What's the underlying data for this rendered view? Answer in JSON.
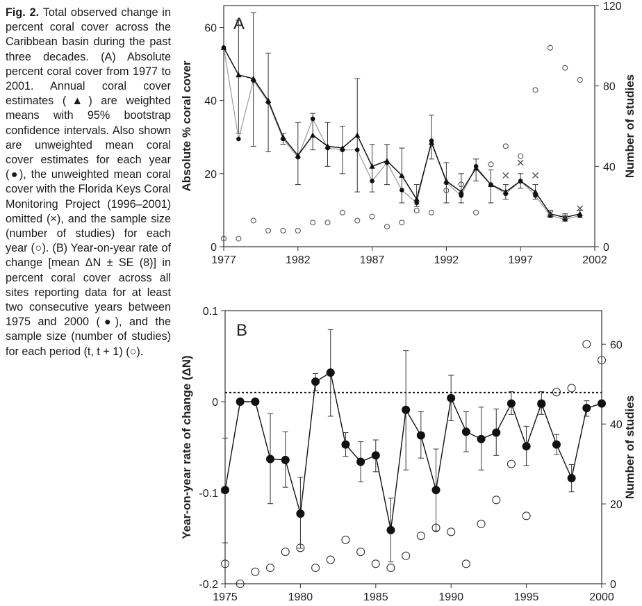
{
  "caption": {
    "label": "Fig. 2.",
    "text": "Total observed change in percent coral cover across the Caribbean basin during the past three decades. (A) Absolute percent coral cover from 1977 to 2001. Annual coral cover estimates (▲) are weighted means with 95% bootstrap confidence intervals. Also shown are unweighted mean coral cover estimates for each year (●), the unweighted mean coral cover with the Florida Keys Coral Monitoring Project (1996–2001) omitted (×), and the sample size (number of studies) for each year (○). (B) Year-on-year rate of change [mean ΔN ± SE (8)] in percent coral cover across all sites reporting data for at least two consecutive years between 1975 and 2000 (●), and the sample size (number of studies) for each period (t, t + 1) (○)."
  },
  "chart_data": [
    {
      "type": "line",
      "panel_label": "A",
      "ylabel": "Absolute % coral cover",
      "y2label": "Number of studies",
      "xlim": [
        1977,
        2002
      ],
      "ylim": [
        0,
        66
      ],
      "y2lim": [
        0,
        120
      ],
      "xticks": [
        1977,
        1982,
        1987,
        1992,
        1997,
        2002
      ],
      "yticks": [
        0,
        20,
        40,
        60
      ],
      "y2ticks": [
        0,
        40,
        80,
        120
      ],
      "x": [
        1977,
        1978,
        1979,
        1980,
        1981,
        1982,
        1983,
        1984,
        1985,
        1986,
        1987,
        1988,
        1989,
        1990,
        1991,
        1992,
        1993,
        1994,
        1995,
        1996,
        1997,
        1998,
        1999,
        2000,
        2001
      ],
      "weighted_mean": [
        54.5,
        47,
        46,
        40,
        30,
        25,
        30.5,
        27.5,
        27,
        30.5,
        22,
        23.5,
        19.5,
        13,
        28.5,
        18,
        15,
        21.5,
        17,
        15,
        18,
        15,
        9,
        8,
        9
      ],
      "ci_low": [
        54.5,
        31,
        27.5,
        26,
        28,
        17,
        26.5,
        22,
        20,
        15,
        15,
        17,
        12,
        11,
        24,
        12,
        12,
        18,
        12,
        13,
        16,
        13,
        8,
        7,
        8
      ],
      "ci_high": [
        54.5,
        62,
        64,
        53,
        31,
        34,
        36.5,
        34,
        33,
        46,
        28,
        28,
        27,
        17,
        36,
        23,
        20,
        24,
        21,
        17,
        20,
        17,
        10,
        9,
        10
      ],
      "unweighted_mean": [
        54.5,
        29.5,
        45.5,
        39.5,
        29.5,
        24.5,
        35,
        27,
        26.5,
        26.5,
        18,
        23,
        15.5,
        12,
        29,
        17.5,
        14,
        22,
        17,
        14.5,
        18,
        14,
        8.5,
        7.5,
        8.5
      ],
      "unweighted_no_fl_x": [
        1996,
        1997,
        1998,
        1999,
        2000,
        2001
      ],
      "unweighted_no_fl": [
        19.5,
        23,
        19.5,
        9,
        8,
        10.5
      ],
      "studies": [
        4,
        4,
        13,
        8,
        8,
        8,
        12,
        12,
        17,
        13,
        15,
        10,
        12,
        18,
        17,
        28,
        31,
        17,
        41,
        50,
        45,
        78,
        99,
        89,
        83
      ]
    },
    {
      "type": "line",
      "panel_label": "B",
      "ylabel": "Year-on-year rate of change (ΔN)",
      "y2label": "Number of studies",
      "xlim": [
        1975,
        2000
      ],
      "ylim": [
        -0.2,
        0.1
      ],
      "y2lim": [
        0,
        68.4
      ],
      "xticks": [
        1975,
        1980,
        1985,
        1990,
        1995,
        2000
      ],
      "yticks": [
        -0.2,
        -0.1,
        0,
        0.1
      ],
      "ytick_labels": [
        "-0.2",
        "-0.1",
        "0",
        "0.1"
      ],
      "y2ticks": [
        0,
        20,
        40,
        60
      ],
      "reference_line": 0.01,
      "x": [
        1975,
        1976,
        1977,
        1978,
        1979,
        1980,
        1981,
        1982,
        1983,
        1984,
        1985,
        1986,
        1987,
        1988,
        1989,
        1990,
        1991,
        1992,
        1993,
        1994,
        1995,
        1996,
        1997,
        1998,
        1999,
        2000
      ],
      "mean_change": [
        -0.097,
        0.0,
        0.0,
        -0.063,
        -0.064,
        -0.123,
        0.022,
        0.032,
        -0.047,
        -0.066,
        -0.059,
        -0.141,
        -0.009,
        -0.037,
        -0.097,
        0.004,
        -0.033,
        -0.041,
        -0.034,
        -0.002,
        -0.049,
        -0.002,
        -0.047,
        -0.084,
        -0.007,
        -0.002
      ],
      "se_low": [
        -0.155,
        0.0,
        0.0,
        -0.112,
        -0.094,
        -0.161,
        0.012,
        -0.016,
        -0.06,
        -0.088,
        -0.077,
        -0.176,
        -0.075,
        -0.062,
        -0.142,
        -0.021,
        -0.055,
        -0.075,
        -0.059,
        -0.014,
        -0.07,
        -0.014,
        -0.058,
        -0.099,
        -0.016,
        -0.002
      ],
      "se_high": [
        -0.04,
        0.0,
        0.0,
        -0.013,
        -0.033,
        -0.083,
        0.031,
        0.079,
        -0.034,
        -0.044,
        -0.042,
        -0.106,
        0.056,
        -0.011,
        -0.052,
        0.029,
        -0.011,
        -0.006,
        -0.008,
        0.011,
        -0.027,
        0.011,
        -0.036,
        -0.069,
        0.001,
        -0.002
      ],
      "studies": [
        5,
        0,
        3,
        4,
        8,
        9,
        4,
        6,
        11,
        8,
        5,
        4,
        7,
        12,
        14,
        13,
        5,
        15,
        21,
        30,
        17,
        45,
        48,
        49,
        60,
        56
      ]
    }
  ]
}
